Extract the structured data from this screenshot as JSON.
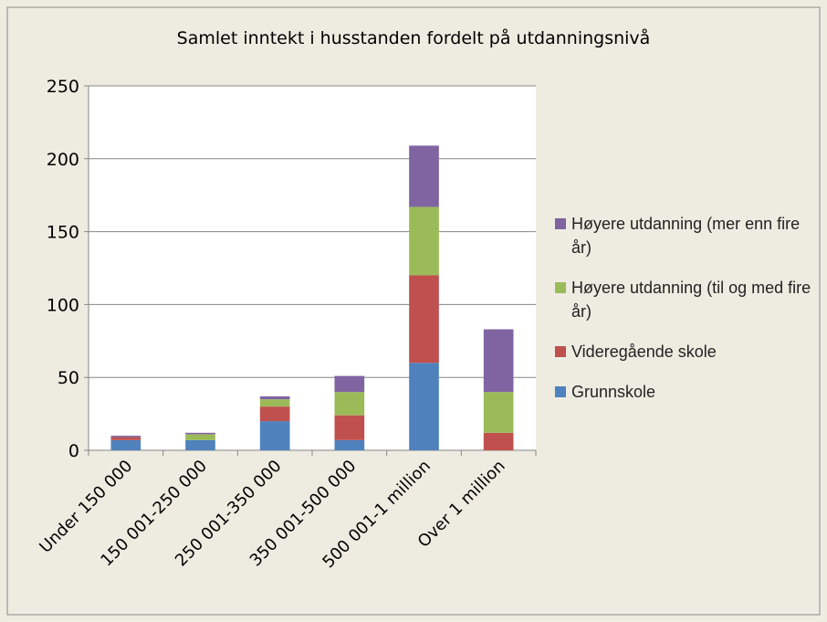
{
  "chart_data": {
    "type": "stacked_bar",
    "title": "Samlet inntekt i husstanden fordelt på utdanningsnivå",
    "categories": [
      "Under 150 000",
      "150 001-250 000",
      "250 001-350 000",
      "350 001-500 000",
      "500 001-1 million",
      "Over 1 million"
    ],
    "series": [
      {
        "name": "Grunnskole",
        "color": "#4f81bd",
        "values": [
          7,
          7,
          20,
          7,
          60,
          0
        ]
      },
      {
        "name": "Videregående skole",
        "color": "#c0504d",
        "values": [
          2,
          0,
          10,
          17,
          60,
          12
        ]
      },
      {
        "name": "Høyere utdanning (til og med fire år)",
        "color": "#9bbb59",
        "values": [
          0,
          4,
          5,
          16,
          47,
          28
        ]
      },
      {
        "name": "Høyere utdanning (mer enn fire år)",
        "color": "#8064a2",
        "values": [
          1,
          1,
          2,
          11,
          42,
          43
        ]
      }
    ],
    "ylim": [
      0,
      250
    ],
    "yticks": [
      0,
      50,
      100,
      150,
      200,
      250
    ],
    "grid": true,
    "legend": "right"
  }
}
